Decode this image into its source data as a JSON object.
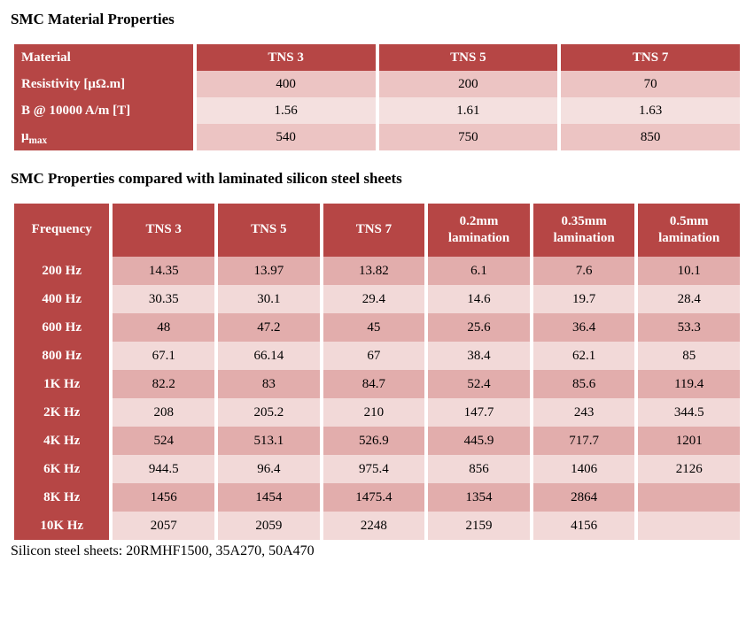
{
  "colors": {
    "header_bg": "#b64645",
    "header_fg": "#ffffff",
    "row_light": "#f2d9d8",
    "row_med": "#ecc4c3",
    "row_dark": "#e2adac",
    "text": "#000000",
    "page_bg": "#ffffff"
  },
  "table1": {
    "title": "SMC Material Properties",
    "type": "table",
    "col_widths_pct": [
      25,
      25,
      25,
      25
    ],
    "columns": [
      "Material",
      "TNS 3",
      "TNS 5",
      "TNS 7"
    ],
    "rows": [
      {
        "label": "Resistivity    [μΩ.m]",
        "values": [
          "400",
          "200",
          "70"
        ]
      },
      {
        "label": "B @ 10000 A/m [T]",
        "values": [
          "1.56",
          "1.61",
          "1.63"
        ]
      },
      {
        "label_html": "μ<span class=\"mu-sub\">max</span>",
        "label_plain": "μmax",
        "values": [
          "540",
          "750",
          "850"
        ]
      }
    ]
  },
  "table2": {
    "title": "SMC Properties compared with laminated silicon steel sheets",
    "type": "table",
    "col_widths_pct": [
      13.5,
      14.4,
      14.4,
      14.4,
      14.4,
      14.4,
      14.4
    ],
    "columns": [
      "Frequency",
      "TNS 3",
      "TNS 5",
      "TNS 7",
      "0.2mm lamination",
      "0.35mm lamination",
      "0.5mm lamination"
    ],
    "rows": [
      {
        "label": "200 Hz",
        "values": [
          "14.35",
          "13.97",
          "13.82",
          "6.1",
          "7.6",
          "10.1"
        ]
      },
      {
        "label": "400 Hz",
        "values": [
          "30.35",
          "30.1",
          "29.4",
          "14.6",
          "19.7",
          "28.4"
        ]
      },
      {
        "label": "600 Hz",
        "values": [
          "48",
          "47.2",
          "45",
          "25.6",
          "36.4",
          "53.3"
        ]
      },
      {
        "label": "800 Hz",
        "values": [
          "67.1",
          "66.14",
          "67",
          "38.4",
          "62.1",
          "85"
        ]
      },
      {
        "label": "1K Hz",
        "values": [
          "82.2",
          "83",
          "84.7",
          "52.4",
          "85.6",
          "119.4"
        ]
      },
      {
        "label": "2K Hz",
        "values": [
          "208",
          "205.2",
          "210",
          "147.7",
          "243",
          "344.5"
        ]
      },
      {
        "label": "4K Hz",
        "values": [
          "524",
          "513.1",
          "526.9",
          "445.9",
          "717.7",
          "1201"
        ]
      },
      {
        "label": "6K Hz",
        "values": [
          "944.5",
          "96.4",
          "975.4",
          "856",
          "1406",
          "2126"
        ]
      },
      {
        "label": "8K Hz",
        "values": [
          "1456",
          "1454",
          "1475.4",
          "1354",
          "2864",
          ""
        ]
      },
      {
        "label": "10K Hz",
        "values": [
          "2057",
          "2059",
          "2248",
          "2159",
          "4156",
          ""
        ]
      }
    ]
  },
  "footnote": "Silicon steel sheets: 20RMHF1500, 35A270, 50A470"
}
